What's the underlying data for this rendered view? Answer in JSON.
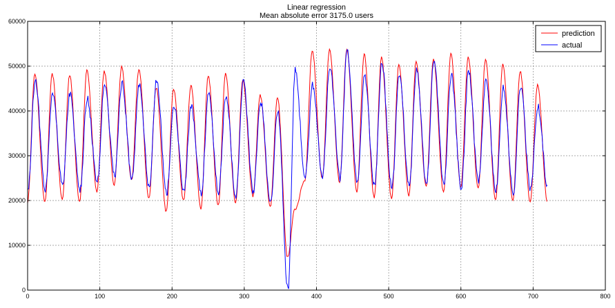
{
  "chart_data": {
    "type": "line",
    "title": "Linear regression",
    "subtitle": "Mean absolute error 3175.0 users",
    "xlabel": "",
    "ylabel": "",
    "xlim": [
      0,
      800
    ],
    "ylim": [
      0,
      60000
    ],
    "x_ticks": [
      0,
      100,
      200,
      300,
      400,
      500,
      600,
      700,
      800
    ],
    "x_tick_labels": [
      "0",
      "100",
      "200",
      "300",
      "400",
      "500",
      "600",
      "700",
      "800"
    ],
    "y_ticks": [
      0,
      10000,
      20000,
      30000,
      40000,
      50000,
      60000
    ],
    "y_tick_labels": [
      "0",
      "10000",
      "20000",
      "30000",
      "40000",
      "50000",
      "60000"
    ],
    "grid": true,
    "legend_position": "top-right",
    "series": [
      {
        "name": "prediction",
        "color": "#ff0000",
        "peaks": [
          48300,
          48200,
          48000,
          49000,
          48900,
          49800,
          49400,
          45200,
          44900,
          45700,
          47800,
          48300,
          47000,
          43500,
          43000,
          18000,
          53500,
          53600,
          53800,
          52800,
          51900,
          50300,
          51000,
          51600,
          52700,
          52000,
          51500,
          50500,
          48900,
          45800
        ],
        "troughs": [
          19600,
          20200,
          19800,
          22000,
          23500,
          24500,
          20500,
          17500,
          20000,
          18200,
          19000,
          19500,
          21000,
          18500,
          7300,
          24500,
          25000,
          24000,
          22000,
          20600,
          20400,
          21200,
          23000,
          21800,
          23000,
          22600,
          20200,
          20000,
          19600
        ]
      },
      {
        "name": "actual",
        "color": "#0000ff",
        "peaks": [
          47000,
          44300,
          44000,
          42800,
          46500,
          46200,
          46000,
          47200,
          41200,
          40800,
          44000,
          43600,
          46800,
          42200,
          40200,
          49000,
          46000,
          50200,
          53600,
          48000,
          50600,
          48500,
          49500,
          51300,
          48000,
          48700,
          47200,
          45500,
          45500,
          41000
        ],
        "troughs": [
          22500,
          23500,
          22000,
          24000,
          25500,
          25000,
          22500,
          21500,
          22000,
          21500,
          22000,
          21000,
          22000,
          20000,
          0,
          25000,
          25500,
          25000,
          23500,
          23000,
          22500,
          23000,
          23500,
          23500,
          23000,
          24000,
          22000,
          21500,
          22500
        ]
      }
    ]
  },
  "legend": {
    "items": [
      {
        "label": "prediction",
        "color": "#ff0000"
      },
      {
        "label": "actual",
        "color": "#0000ff"
      }
    ]
  }
}
